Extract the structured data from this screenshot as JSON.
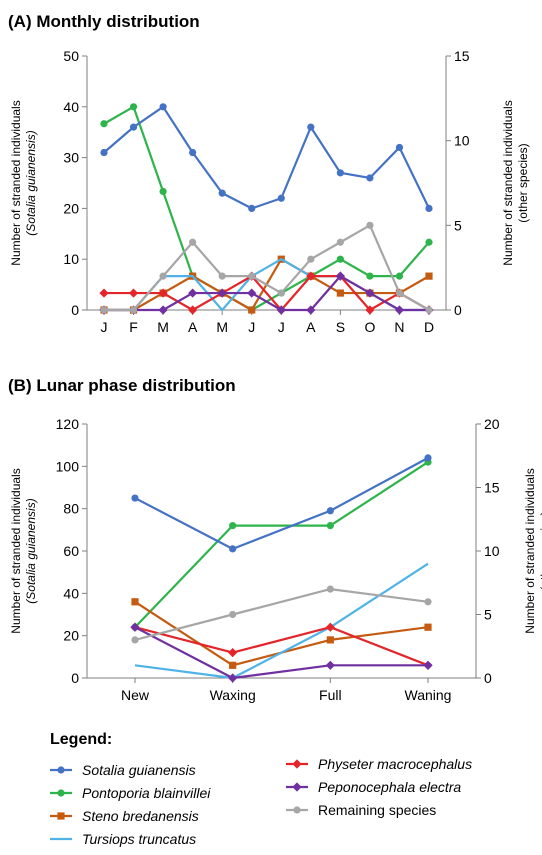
{
  "series_styles": [
    {
      "name": "Sotalia guianensis",
      "italic": true,
      "color": "#4472c4",
      "marker": "circle"
    },
    {
      "name": "Pontoporia blainvillei",
      "italic": true,
      "color": "#2db44a",
      "marker": "circle"
    },
    {
      "name": "Steno bredanensis",
      "italic": true,
      "color": "#c55a11",
      "marker": "square"
    },
    {
      "name": "Tursiops truncatus",
      "italic": true,
      "color": "#4fb3e8",
      "marker": "none"
    },
    {
      "name": "Physeter macrocephalus",
      "italic": true,
      "color": "#e2262b",
      "marker": "diamond"
    },
    {
      "name": "Peponocephala electra",
      "italic": true,
      "color": "#7030a0",
      "marker": "diamond"
    },
    {
      "name": "Remaining species",
      "italic": false,
      "color": "#a6a6a6",
      "marker": "circle"
    }
  ],
  "legend": {
    "title": "Legend:",
    "items": [
      "Sotalia guianensis",
      "Pontoporia blainvillei",
      "Steno bredanensis",
      "Tursiops truncatus",
      "Physeter macrocephalus",
      "Peponocephala electra",
      "Remaining species"
    ]
  },
  "chart_data": [
    {
      "type": "line",
      "title": "(A) Monthly distribution",
      "categories": [
        "J",
        "F",
        "M",
        "A",
        "M",
        "J",
        "J",
        "A",
        "S",
        "O",
        "N",
        "D"
      ],
      "ylabel_left": [
        "Number of stranded individuals",
        "(Sotalia guianensis)"
      ],
      "ylabel_right": [
        "Number of stranded individuals",
        "(other species)"
      ],
      "ylim_left": [
        0,
        50
      ],
      "yticks_left": [
        "0",
        "10",
        "20",
        "30",
        "40",
        "50"
      ],
      "ylim_right": [
        0,
        15
      ],
      "yticks_right": [
        "0",
        "5",
        "10",
        "15"
      ],
      "grid": false,
      "legend": "bottom",
      "series": [
        {
          "name": "Sotalia guianensis",
          "axis": "left",
          "values": [
            31,
            36,
            40,
            31,
            23,
            20,
            22,
            36,
            27,
            26,
            32,
            20
          ]
        },
        {
          "name": "Pontoporia blainvillei",
          "axis": "right",
          "values": [
            11,
            12,
            7,
            2,
            1,
            0,
            1,
            2,
            3,
            2,
            2,
            4
          ]
        },
        {
          "name": "Steno bredanensis",
          "axis": "right",
          "values": [
            0,
            0,
            1,
            2,
            1,
            0,
            3,
            2,
            1,
            1,
            1,
            2
          ]
        },
        {
          "name": "Tursiops truncatus",
          "axis": "right",
          "values": [
            0,
            0,
            2,
            2,
            0,
            2,
            3,
            2,
            2,
            1,
            0,
            0
          ]
        },
        {
          "name": "Physeter macrocephalus",
          "axis": "right",
          "values": [
            1,
            1,
            1,
            0,
            1,
            2,
            0,
            2,
            2,
            0,
            1,
            0
          ]
        },
        {
          "name": "Peponocephala electra",
          "axis": "right",
          "values": [
            0,
            0,
            0,
            1,
            1,
            1,
            0,
            0,
            2,
            1,
            0,
            0
          ]
        },
        {
          "name": "Remaining species",
          "axis": "right",
          "values": [
            0,
            0,
            2,
            4,
            2,
            2,
            1,
            3,
            4,
            5,
            1,
            0
          ]
        }
      ]
    },
    {
      "type": "line",
      "title": "(B) Lunar phase distribution",
      "categories": [
        "New",
        "Waxing",
        "Full",
        "Waning"
      ],
      "ylabel_left": [
        "Number of stranded individuals",
        "(Sotalia guianensis)"
      ],
      "ylabel_right": [
        "Number of stranded individuals",
        "(other species)"
      ],
      "ylim_left": [
        0,
        120
      ],
      "yticks_left": [
        "0",
        "20",
        "40",
        "60",
        "80",
        "100",
        "120"
      ],
      "ylim_right": [
        0,
        20
      ],
      "yticks_right": [
        "0",
        "5",
        "10",
        "15",
        "20"
      ],
      "grid": false,
      "legend": "bottom",
      "series": [
        {
          "name": "Sotalia guianensis",
          "axis": "left",
          "values": [
            85,
            61,
            79,
            104
          ]
        },
        {
          "name": "Pontoporia blainvillei",
          "axis": "right",
          "values": [
            4,
            12,
            12,
            17
          ]
        },
        {
          "name": "Steno bredanensis",
          "axis": "right",
          "values": [
            6,
            1,
            3,
            4
          ]
        },
        {
          "name": "Tursiops truncatus",
          "axis": "right",
          "values": [
            1,
            0,
            4,
            9
          ]
        },
        {
          "name": "Physeter macrocephalus",
          "axis": "right",
          "values": [
            4,
            2,
            4,
            1
          ]
        },
        {
          "name": "Peponocephala electra",
          "axis": "right",
          "values": [
            4,
            0,
            1,
            1
          ]
        },
        {
          "name": "Remaining species",
          "axis": "right",
          "values": [
            3,
            5,
            7,
            6
          ]
        }
      ]
    }
  ]
}
